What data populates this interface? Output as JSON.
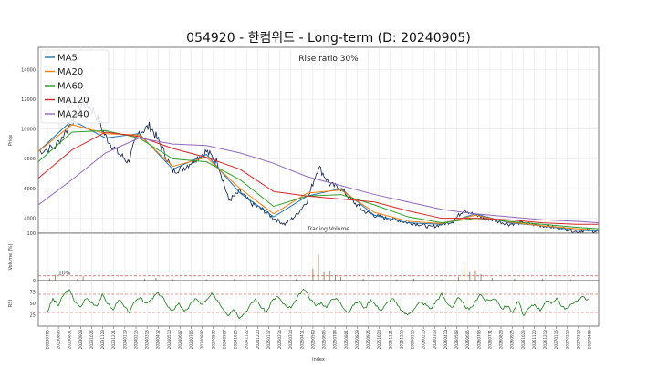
{
  "chart_data": [
    {
      "type": "line",
      "title": "054920 - 한컴위드 - Long-term (D: 20240905)",
      "ylabel": "Price",
      "ylim": [
        3000,
        15500
      ],
      "yticks": [
        "4000",
        "6000",
        "8000",
        "10000",
        "12000",
        "14000"
      ],
      "annotation": "Rise ratio 30%",
      "legend_position": "top-left",
      "grid": true,
      "series": [
        {
          "name": "MA5",
          "color": "#1f77b4"
        },
        {
          "name": "MA20",
          "color": "#ff7f0e"
        },
        {
          "name": "MA60",
          "color": "#2ca02c"
        },
        {
          "name": "MA120",
          "color": "#d62728"
        },
        {
          "name": "MA240",
          "color": "#9467bd"
        }
      ],
      "price_color": "#0b1f4a",
      "price_x": [
        0,
        3,
        6,
        8,
        10,
        12,
        14,
        16,
        18,
        20,
        22,
        24,
        26,
        28,
        30,
        32,
        34,
        36,
        38,
        40,
        42,
        44,
        46,
        48,
        50,
        52,
        54,
        56,
        58,
        60,
        62,
        64,
        66,
        68,
        70,
        72,
        74,
        76,
        78,
        80,
        82,
        84,
        86,
        88,
        90,
        92,
        94,
        96,
        98,
        100
      ],
      "price": [
        8500,
        8800,
        10500,
        11800,
        11200,
        9500,
        8500,
        7800,
        9800,
        10200,
        8800,
        7200,
        7400,
        8000,
        8500,
        7800,
        5200,
        5800,
        5000,
        4600,
        4000,
        3600,
        4200,
        5200,
        7500,
        6300,
        6000,
        5200,
        4500,
        4200,
        4000,
        3900,
        3700,
        3600,
        3400,
        3600,
        3800,
        4600,
        4200,
        4000,
        3800,
        3600,
        3700,
        3600,
        3500,
        3400,
        3300,
        3100,
        3200,
        3100
      ],
      "ma_x": [
        0,
        6,
        12,
        18,
        24,
        30,
        36,
        42,
        48,
        54,
        60,
        66,
        72,
        78,
        84,
        90,
        96,
        100
      ],
      "ma5": [
        8500,
        10600,
        9400,
        9700,
        7300,
        8300,
        5700,
        4100,
        5500,
        6000,
        4200,
        3700,
        3600,
        4300,
        3700,
        3500,
        3200,
        3150
      ],
      "ma20": [
        8500,
        10300,
        9700,
        9600,
        7500,
        8100,
        6000,
        4300,
        5700,
        5900,
        4400,
        3800,
        3650,
        4200,
        3750,
        3500,
        3300,
        3200
      ],
      "ma60": [
        7800,
        9800,
        9900,
        9400,
        8000,
        7800,
        6600,
        4800,
        5500,
        5600,
        4900,
        4100,
        3700,
        4000,
        3800,
        3600,
        3400,
        3300
      ],
      "ma120": [
        6700,
        8600,
        9800,
        9500,
        8700,
        8100,
        7300,
        5800,
        5500,
        5300,
        5100,
        4500,
        4000,
        4000,
        3900,
        3700,
        3600,
        3600
      ],
      "ma240": [
        4900,
        6600,
        8400,
        9400,
        9000,
        8900,
        8400,
        7700,
        6800,
        6200,
        5600,
        5100,
        4600,
        4300,
        4100,
        3900,
        3800,
        3700
      ]
    },
    {
      "type": "bar",
      "title": "Trading Volume",
      "ylabel": "Volume (%)",
      "ylim": [
        0,
        100
      ],
      "yticks": [
        "0",
        "100"
      ],
      "threshold_label": "10%",
      "threshold_value": 10,
      "bar_color": "#8b5a2b",
      "x": [
        0,
        2,
        3,
        7,
        8,
        19,
        21,
        24,
        30,
        35,
        46,
        49,
        50,
        51,
        52,
        53,
        54,
        58,
        64,
        67,
        72,
        75,
        76,
        77,
        78,
        79,
        81,
        85,
        90,
        95
      ],
      "values": [
        3,
        5,
        12,
        4,
        9,
        4,
        6,
        3,
        3,
        4,
        3,
        25,
        55,
        18,
        20,
        12,
        8,
        4,
        3,
        4,
        3,
        8,
        32,
        18,
        22,
        14,
        6,
        4,
        4,
        3
      ]
    },
    {
      "type": "line",
      "ylabel": "RSI",
      "ylim": [
        0,
        100
      ],
      "yticks": [
        "25",
        "50",
        "75"
      ],
      "reference_lines": [
        30,
        70
      ],
      "line_color": "#1a7a1a",
      "values": [
        32,
        60,
        45,
        70,
        78,
        55,
        40,
        62,
        52,
        45,
        68,
        50,
        35,
        60,
        42,
        30,
        55,
        65,
        48,
        58,
        72,
        66,
        40,
        35,
        52,
        30,
        45,
        62,
        48,
        55,
        70,
        58,
        40,
        25,
        38,
        20,
        28,
        45,
        60,
        42,
        30,
        55,
        65,
        50,
        38,
        48,
        70,
        82,
        60,
        45,
        52,
        40,
        62,
        58,
        42,
        30,
        48,
        55,
        38,
        60,
        45,
        35,
        50,
        62,
        44,
        30,
        25,
        40,
        52,
        48,
        38,
        55,
        70,
        50,
        42,
        62,
        48,
        35,
        50,
        72,
        55,
        58,
        60,
        38,
        45,
        30,
        55,
        22,
        40,
        48,
        35,
        55,
        50,
        62,
        42,
        38,
        52,
        58,
        65,
        55
      ]
    }
  ],
  "x_axis": {
    "label": "Index",
    "ticks": [
      "20230705",
      "20230803",
      "20230831",
      "20230928",
      "20231026",
      "20231123",
      "20231221",
      "20240119",
      "20240216",
      "20240315",
      "20240412",
      "20240510",
      "20240607",
      "20240705",
      "20240802",
      "20240830",
      "20240927",
      "20241025",
      "20241122",
      "20241220",
      "20250117",
      "20250214",
      "20250314",
      "20250411",
      "20250509",
      "20250606",
      "20250704",
      "20250801",
      "20250829",
      "20250926",
      "20251024",
      "20251121",
      "20251219",
      "20260116",
      "20260213",
      "20260313",
      "20260410",
      "20260508",
      "20260605",
      "20260703",
      "20260731",
      "20260828",
      "20260925",
      "20261023",
      "20261120",
      "20261218",
      "20270115",
      "20270212",
      "20270312",
      "20270409"
    ]
  }
}
